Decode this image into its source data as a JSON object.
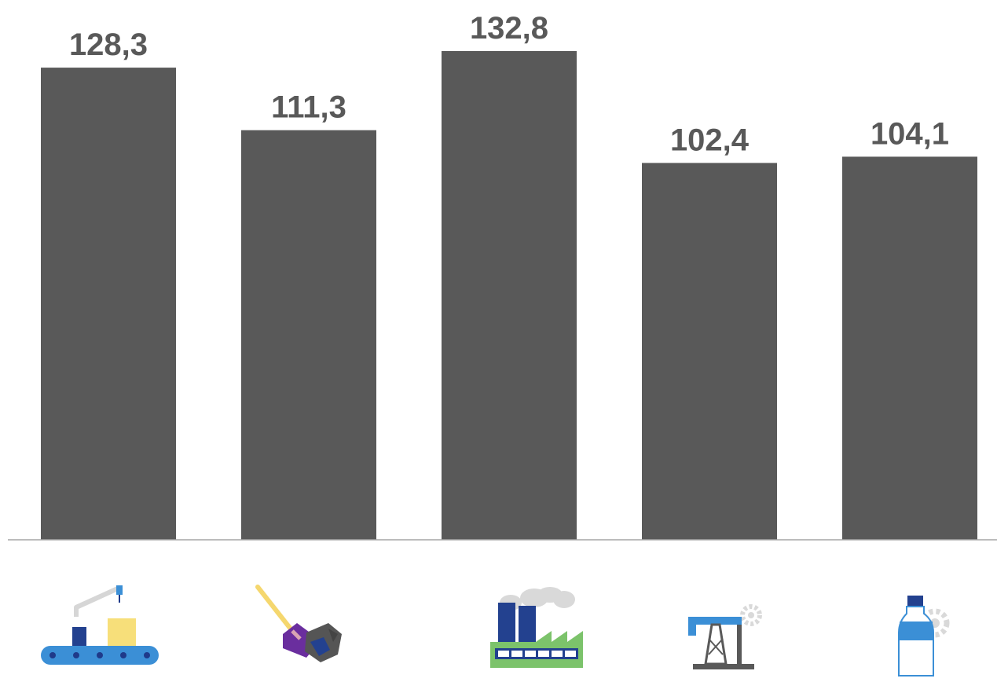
{
  "chart_data": {
    "type": "bar",
    "title": "",
    "xlabel": "",
    "ylabel": "",
    "ylim": [
      0,
      140
    ],
    "grid": false,
    "legend": "none",
    "categories": [
      "",
      "",
      "",
      "",
      ""
    ],
    "category_icons": [
      "manufacturing-icon",
      "mining-icon",
      "factory-icon",
      "oil-pump-icon",
      "water-bottle-icon"
    ],
    "values": [
      128.3,
      111.3,
      132.8,
      102.4,
      104.1
    ],
    "value_labels": [
      "128,3",
      "111,3",
      "132,8",
      "102,4",
      "104,1"
    ],
    "bar_color": "#595959",
    "axis_color": "#a6a6a6"
  }
}
